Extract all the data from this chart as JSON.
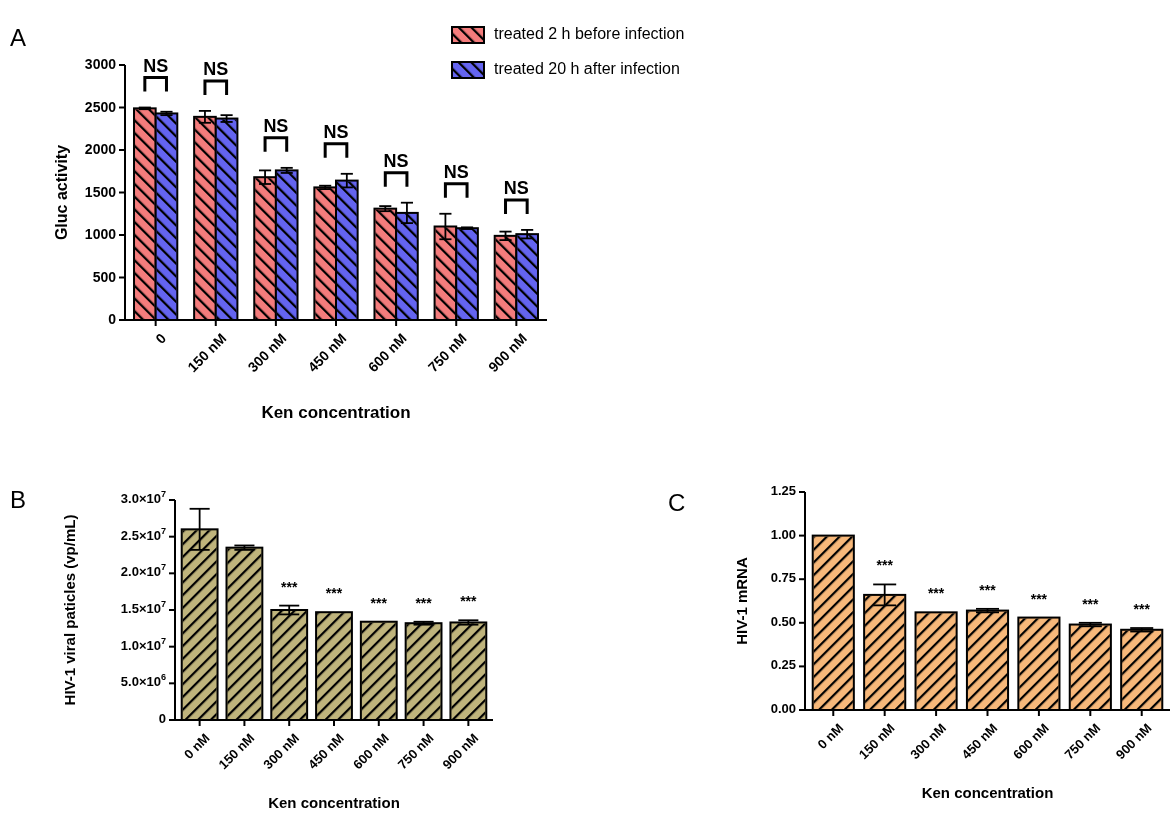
{
  "chart_data": [
    {
      "type": "bar",
      "title": "A",
      "xlabel": "Ken concentration",
      "ylabel": "Gluc activity",
      "categories": [
        "0",
        "150 nM",
        "300 nM",
        "450 nM",
        "600 nM",
        "750 nM",
        "900 nM"
      ],
      "series": [
        {
          "name": "treated 2 h before infection",
          "color": "#f47c7c",
          "values": [
            2490,
            2390,
            1680,
            1560,
            1310,
            1100,
            990
          ],
          "errors": [
            10,
            70,
            80,
            20,
            30,
            150,
            50
          ]
        },
        {
          "name": "treated 20 h after infection",
          "color": "#6464f0",
          "values": [
            2430,
            2370,
            1760,
            1640,
            1260,
            1080,
            1010
          ],
          "errors": [
            20,
            40,
            30,
            80,
            120,
            10,
            50
          ]
        }
      ],
      "ylim": [
        0,
        3000
      ],
      "yticks": [
        0,
        500,
        1000,
        1500,
        2000,
        2500,
        3000
      ],
      "grid": false,
      "legend": "top right",
      "annotations": [
        "NS",
        "NS",
        "NS",
        "NS",
        "NS",
        "NS",
        "NS"
      ]
    },
    {
      "type": "bar",
      "title": "B",
      "xlabel": "Ken concentration",
      "ylabel": "HIV-1 viral paticles (vp/mL)",
      "categories": [
        "0 nM",
        "150 nM",
        "300 nM",
        "450 nM",
        "600 nM",
        "750 nM",
        "900 nM"
      ],
      "series": [
        {
          "color": "#bfb47c",
          "values": [
            26000000,
            23500000,
            15000000,
            14700000,
            13400000,
            13200000,
            13300000
          ],
          "errors": [
            2800000,
            300000,
            600000,
            null,
            null,
            200000,
            300000
          ]
        }
      ],
      "ylim": [
        0,
        30000000
      ],
      "yticks": [
        0,
        {
          "value": 5000000,
          "label": "5.0×10$^{6}$"
        },
        {
          "value": 10000000,
          "label": "1.0×10$^{7}$"
        },
        {
          "value": 15000000,
          "label": "1.5×10$^{7}$"
        },
        {
          "value": 20000000,
          "label": "2.0×10$^{7}$"
        },
        {
          "value": 25000000,
          "label": "2.5×10$^{7}$"
        },
        {
          "value": 30000000,
          "label": "3.0×10$^{7}$"
        }
      ],
      "grid": false,
      "legend": false,
      "annotations": [
        "***",
        "***",
        "***",
        "***",
        "***"
      ]
    },
    {
      "type": "bar",
      "title": "C",
      "xlabel": "Ken concentration",
      "ylabel": "HIV-1 mRNA",
      "categories": [
        "0 nM",
        "150 nM",
        "300 nM",
        "450 nM",
        "600 nM",
        "750 nM",
        "900 nM"
      ],
      "series": [
        {
          "color": "#f7b87a",
          "values": [
            1.0,
            0.66,
            0.56,
            0.57,
            0.53,
            0.49,
            0.46
          ],
          "errors": [
            null,
            0.06,
            null,
            0.01,
            null,
            0.01,
            0.01
          ]
        }
      ],
      "ylim": [
        0,
        1.25
      ],
      "yticks": [
        {
          "value": 0,
          "label": "0.00"
        },
        {
          "value": 0.25,
          "label": "0.25"
        },
        {
          "value": 0.5,
          "label": "0.50"
        },
        {
          "value": 0.75,
          "label": "0.75"
        },
        {
          "value": 1,
          "label": "1.00"
        },
        {
          "value": 1.25,
          "label": "1.25"
        }
      ],
      "grid": false,
      "legend": false,
      "annotations": [
        "***",
        "***",
        "***",
        "***",
        "***",
        "***"
      ]
    }
  ]
}
